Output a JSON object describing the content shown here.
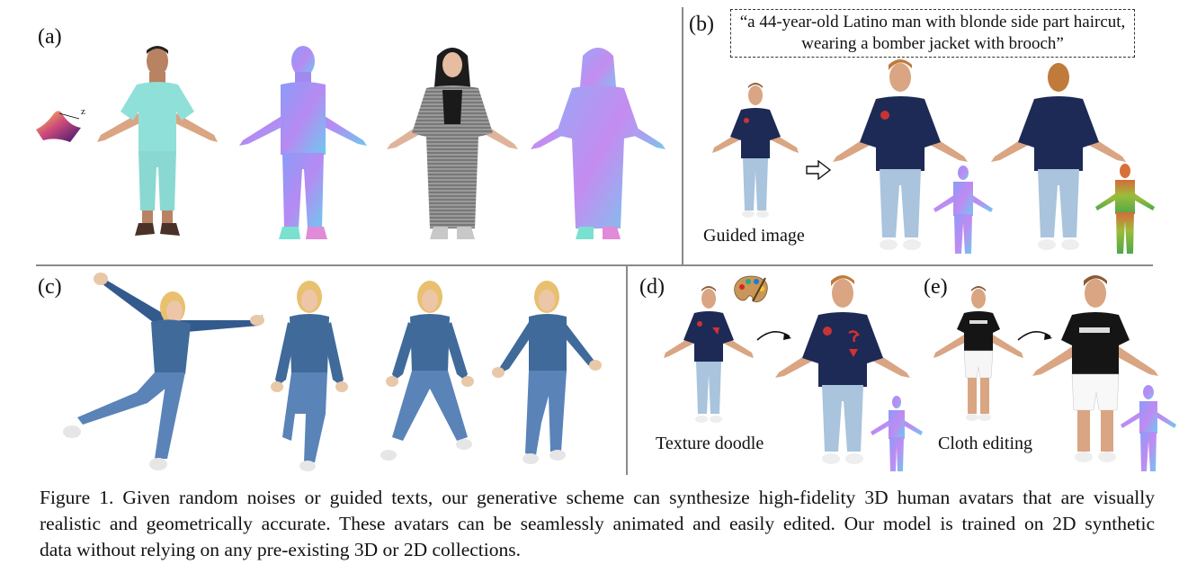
{
  "panels": {
    "a": {
      "label": "(a)",
      "axis_label": "z"
    },
    "b": {
      "label": "(b)",
      "prompt_line1": "“a 44-year-old Latino man with blonde side part haircut,",
      "prompt_line2": "wearing a bomber jacket with brooch”",
      "guided_caption": "Guided image"
    },
    "c": {
      "label": "(c)"
    },
    "d": {
      "label": "(d)",
      "caption": "Texture doodle"
    },
    "e": {
      "label": "(e)",
      "caption": "Cloth editing"
    }
  },
  "figure_caption": {
    "line1": "Figure 1. Given random noises or guided texts, our generative scheme can synthesize high-fidelity 3D human avatars that are visually",
    "line2": "realistic and geometrically accurate. These avatars can be seamlessly animated and easily edited. Our model is trained on 2D synthetic",
    "line3": "data without relying on any pre-existing 3D or 2D collections."
  },
  "colors": {
    "cyan_shirt": "#8fe0d8",
    "normal_blue": "#7f8cf5",
    "normal_pink": "#e07ad8",
    "jacket_navy": "#1d2a55",
    "denim": "#5a83b8",
    "jeans_light": "#a9c4dc",
    "skin": "#d9a583"
  }
}
